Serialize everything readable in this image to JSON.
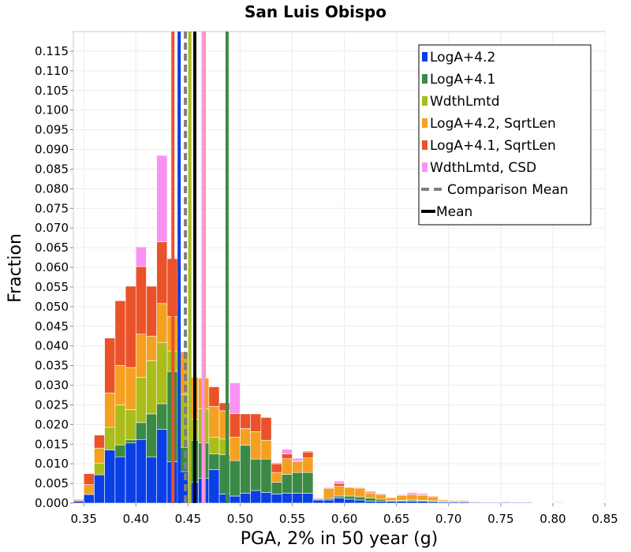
{
  "chart_data": {
    "type": "bar",
    "stacked": true,
    "title": "San Luis Obispo",
    "xlabel": "PGA, 2% in 50 year (g)",
    "ylabel": "Fraction",
    "xlim": [
      0.34,
      0.85
    ],
    "ylim": [
      0.0,
      0.12
    ],
    "bin_width": 0.01,
    "x_ticks": [
      "0.35",
      "0.40",
      "0.45",
      "0.50",
      "0.55",
      "0.60",
      "0.65",
      "0.70",
      "0.75",
      "0.80",
      "0.85"
    ],
    "y_ticks": [
      "0.000",
      "0.005",
      "0.010",
      "0.015",
      "0.020",
      "0.025",
      "0.030",
      "0.035",
      "0.040",
      "0.045",
      "0.050",
      "0.055",
      "0.060",
      "0.065",
      "0.070",
      "0.075",
      "0.080",
      "0.085",
      "0.090",
      "0.095",
      "0.100",
      "0.105",
      "0.110",
      "0.115"
    ],
    "grid": true,
    "legend_position": "top-right",
    "x": [
      0.345,
      0.355,
      0.365,
      0.375,
      0.385,
      0.395,
      0.405,
      0.415,
      0.425,
      0.435,
      0.445,
      0.455,
      0.465,
      0.475,
      0.485,
      0.495,
      0.505,
      0.515,
      0.525,
      0.535,
      0.545,
      0.555,
      0.565,
      0.575,
      0.585,
      0.595,
      0.605,
      0.615,
      0.625,
      0.635,
      0.645,
      0.655,
      0.665,
      0.675,
      0.685,
      0.695,
      0.705,
      0.715,
      0.725,
      0.735,
      0.745,
      0.755,
      0.765,
      0.775,
      0.785,
      0.795,
      0.805,
      0.815,
      0.825,
      0.835,
      0.845
    ],
    "series": [
      {
        "name": "LogA+4.2",
        "color": "#0a3ee6",
        "values": [
          0.0005,
          0.0022,
          0.0072,
          0.0135,
          0.0118,
          0.0153,
          0.0162,
          0.0117,
          0.0188,
          0.0105,
          0.008,
          0.0053,
          0.0063,
          0.0085,
          0.0023,
          0.0018,
          0.0025,
          0.0032,
          0.0027,
          0.0023,
          0.0025,
          0.0025,
          0.0025,
          0.0008,
          0.0008,
          0.0013,
          0.001,
          0.0008,
          0.0005,
          0.0005,
          0.0005,
          0.0005,
          0.0005,
          0.0005,
          0.0004,
          0.0003,
          0.0003,
          0.0003,
          0.0002,
          0.0002,
          0.0002,
          0.0002,
          0.0002,
          0.0002,
          0.0001,
          0.0001,
          0.0001,
          0.0001,
          0.0001,
          0.0001,
          0.0001
        ]
      },
      {
        "name": "LogA+4.1",
        "color": "#3a8a46",
        "values": [
          0.0,
          0.0,
          0.0,
          0.0,
          0.003,
          0.0008,
          0.0043,
          0.011,
          0.0065,
          0.023,
          0.0062,
          0.0107,
          0.009,
          0.004,
          0.01,
          0.009,
          0.0122,
          0.008,
          0.0085,
          0.003,
          0.0048,
          0.0053,
          0.0053,
          0.0,
          0.0004,
          0.0005,
          0.0008,
          0.0008,
          0.0008,
          0.0005,
          0.0001,
          0.0002,
          0.0003,
          0.0002,
          0.0002,
          0.0001,
          0.0001,
          0.0001,
          0.0001,
          0.0001,
          0.0001,
          0.0001,
          0.0001,
          0.0001,
          0.0001,
          0.0001,
          0.0001,
          0.0001,
          0.0001,
          0.0001,
          0.0001
        ]
      },
      {
        "name": "WdthLmtd",
        "color": "#aabd1a",
        "values": [
          0.0,
          0.0,
          0.003,
          0.0058,
          0.0102,
          0.0077,
          0.0115,
          0.0135,
          0.0155,
          0.0052,
          0.0135,
          0.0053,
          0.0087,
          0.0043,
          0.004,
          0.0,
          0.0,
          0.0,
          0.0,
          0.0,
          0.0,
          0.0,
          0.0,
          0.0,
          0.0,
          0.0,
          0.0,
          0.0,
          0.0,
          0.0,
          0.0,
          0.0,
          0.0,
          0.0,
          0.0,
          0.0,
          0.0,
          0.0,
          0.0,
          0.0,
          0.0,
          0.0,
          0.0,
          0.0,
          0.0,
          0.0,
          0.0,
          0.0,
          0.0,
          0.0,
          0.0
        ]
      },
      {
        "name": "LogA+4.2, SqrtLen",
        "color": "#f5a020",
        "values": [
          0.0,
          0.0025,
          0.0038,
          0.0087,
          0.01,
          0.0107,
          0.011,
          0.0063,
          0.01,
          0.0088,
          0.0108,
          0.0107,
          0.0078,
          0.0078,
          0.0072,
          0.006,
          0.0043,
          0.007,
          0.0048,
          0.0025,
          0.004,
          0.0027,
          0.0037,
          0.0003,
          0.0025,
          0.0025,
          0.0022,
          0.0022,
          0.0012,
          0.0012,
          0.0008,
          0.0012,
          0.0013,
          0.0013,
          0.001,
          0.0004,
          0.0003,
          0.0003,
          0.0002,
          0.0001,
          0.0001,
          0.0002,
          0.0001,
          0.0001,
          0.0001,
          0.0001,
          0.0002,
          0.0001,
          0.0001,
          0.0001,
          0.0001
        ]
      },
      {
        "name": "LogA+4.1, SqrtLen",
        "color": "#eb522a",
        "values": [
          0.0003,
          0.0028,
          0.0033,
          0.014,
          0.0165,
          0.0207,
          0.0172,
          0.0127,
          0.0157,
          0.0147,
          0.0,
          0.0,
          0.0,
          0.005,
          0.002,
          0.006,
          0.0037,
          0.0045,
          0.0058,
          0.0022,
          0.0012,
          0.0002,
          0.0015,
          0.0002,
          0.0002,
          0.0007,
          0.0001,
          0.0001,
          0.0003,
          0.0002,
          0.0001,
          0.0002,
          0.0003,
          0.0002,
          0.0002,
          0.0001,
          0.0001,
          0.0001,
          0.0001,
          0.0001,
          0.0001,
          0.0001,
          0.0001,
          0.0001,
          0.0001,
          0.0001,
          0.0001,
          0.0001,
          0.0001,
          0.0001,
          0.0001
        ]
      },
      {
        "name": "WdthLmtd, CSD",
        "color": "#fa92f5",
        "values": [
          0.0002,
          0.0,
          0.0,
          0.0,
          0.0,
          0.0,
          0.005,
          0.0,
          0.022,
          0.0,
          0.0,
          0.0,
          0.0,
          0.0,
          0.0,
          0.0078,
          0.0,
          0.0,
          0.0,
          0.0003,
          0.0012,
          0.0007,
          0.0003,
          0.0,
          0.0002,
          0.0006,
          0.0001,
          0.0002,
          0.0003,
          0.0001,
          0.0001,
          0.0002,
          0.0003,
          0.0003,
          0.0001,
          0.0001,
          0.0001,
          0.0001,
          0.0001,
          0.0001,
          0.0001,
          0.0001,
          0.0001,
          0.0001,
          0.0001,
          0.0001,
          0.0001,
          0.0001,
          0.0001,
          0.0001,
          0.0001
        ]
      }
    ],
    "lines": [
      {
        "name": "LogA+4.2",
        "value": 0.4415,
        "color": "#0a3ee6",
        "style": "solid"
      },
      {
        "name": "LogA+4.1",
        "value": 0.4875,
        "color": "#3a8a46",
        "style": "solid"
      },
      {
        "name": "WdthLmtd",
        "value": 0.4518,
        "color": "#aabd1a",
        "style": "solid"
      },
      {
        "name": "LogA+4.2, SqrtLen",
        "value": 0.4655,
        "color": "#f5a020",
        "style": "solid"
      },
      {
        "name": "LogA+4.1, SqrtLen",
        "value": 0.4355,
        "color": "#eb522a",
        "style": "solid"
      },
      {
        "name": "WdthLmtd, CSD",
        "value": 0.4645,
        "color": "#fa92f5",
        "style": "solid"
      },
      {
        "name": "Comparison Mean",
        "value": 0.4475,
        "color": "#7f7f7f",
        "style": "dashed"
      },
      {
        "name": "Mean",
        "value": 0.4565,
        "color": "#000000",
        "style": "solid"
      }
    ],
    "legend": [
      {
        "label": "LogA+4.2",
        "color": "#0a3ee6",
        "kind": "box"
      },
      {
        "label": "LogA+4.1",
        "color": "#3a8a46",
        "kind": "box"
      },
      {
        "label": "WdthLmtd",
        "color": "#aabd1a",
        "kind": "box"
      },
      {
        "label": "LogA+4.2, SqrtLen",
        "color": "#f5a020",
        "kind": "box"
      },
      {
        "label": "LogA+4.1, SqrtLen",
        "color": "#eb522a",
        "kind": "box"
      },
      {
        "label": "WdthLmtd, CSD",
        "color": "#fa92f5",
        "kind": "box"
      },
      {
        "label": "Comparison Mean",
        "color": "#7f7f7f",
        "kind": "dash"
      },
      {
        "label": "Mean",
        "color": "#000000",
        "kind": "line"
      }
    ]
  }
}
